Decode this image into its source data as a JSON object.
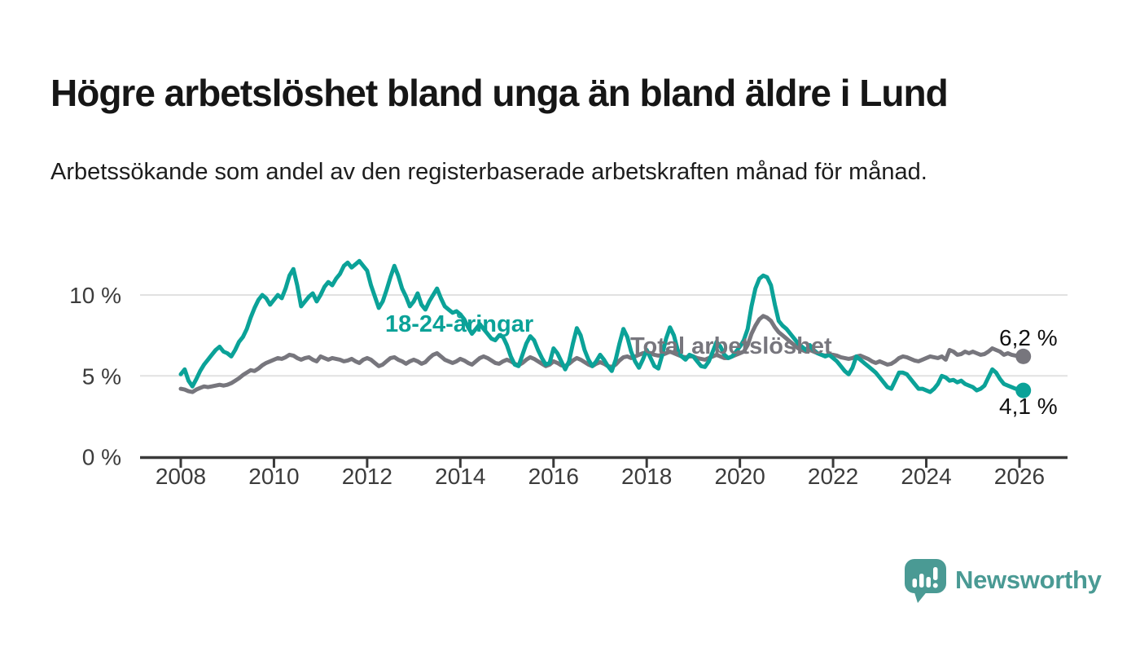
{
  "chart_data": {
    "type": "line",
    "title": "Högre arbetslöshet bland unga än bland äldre i Lund",
    "subtitle": "Arbetssökande som andel av den registerbaserade arbetskraften månad för månad.",
    "x_unit": "month",
    "x_start": "2008-01",
    "x_end": "2026-02",
    "x_ticks": [
      2008,
      2010,
      2012,
      2014,
      2016,
      2018,
      2020,
      2022,
      2024,
      2026
    ],
    "y_axis": {
      "unit": "%",
      "ylim": [
        0,
        12.6
      ],
      "ticks": [
        {
          "label": "0 %",
          "value": 0
        },
        {
          "label": "5 %",
          "value": 5
        },
        {
          "label": "10 %",
          "value": 10
        }
      ]
    },
    "grid": "horizontal-gridlines-at-5-and-10",
    "legend": "inline-labels-on-lines",
    "series": [
      {
        "name": "18-24-åringar",
        "color": "#0ba298",
        "end_label": "4,1 %",
        "last_value": 4.1,
        "values": [
          5.1,
          5.4,
          4.7,
          4.35,
          4.8,
          5.3,
          5.7,
          6.0,
          6.3,
          6.6,
          6.8,
          6.5,
          6.4,
          6.2,
          6.6,
          7.1,
          7.4,
          7.9,
          8.6,
          9.2,
          9.7,
          10.0,
          9.8,
          9.4,
          9.7,
          10.0,
          9.8,
          10.4,
          11.2,
          11.6,
          10.6,
          9.3,
          9.6,
          9.9,
          10.1,
          9.6,
          10.0,
          10.5,
          10.8,
          10.6,
          11.0,
          11.3,
          11.8,
          12.0,
          11.7,
          11.9,
          12.1,
          11.8,
          11.5,
          10.6,
          9.9,
          9.2,
          9.6,
          10.3,
          11.1,
          11.8,
          11.2,
          10.4,
          9.9,
          9.3,
          9.6,
          10.1,
          9.4,
          9.1,
          9.6,
          10.0,
          10.4,
          9.8,
          9.3,
          9.1,
          8.9,
          9.0,
          8.8,
          8.5,
          8.0,
          7.6,
          7.9,
          8.2,
          7.9,
          7.6,
          7.3,
          7.2,
          7.5,
          7.4,
          6.9,
          6.2,
          5.7,
          5.6,
          6.3,
          7.0,
          7.45,
          7.2,
          6.6,
          6.1,
          5.7,
          5.8,
          6.7,
          6.4,
          5.9,
          5.4,
          5.9,
          7.0,
          7.95,
          7.5,
          6.6,
          6.0,
          5.6,
          5.9,
          6.3,
          6.0,
          5.6,
          5.3,
          6.0,
          7.0,
          7.9,
          7.4,
          6.5,
          5.9,
          5.5,
          6.0,
          6.6,
          6.1,
          5.6,
          5.45,
          6.3,
          7.3,
          8.0,
          7.5,
          6.6,
          6.2,
          6.0,
          6.3,
          6.2,
          5.9,
          5.6,
          5.55,
          5.9,
          6.5,
          7.1,
          6.8,
          6.3,
          6.1,
          6.2,
          6.5,
          6.8,
          7.2,
          7.9,
          9.3,
          10.4,
          11.0,
          11.2,
          11.1,
          10.6,
          9.4,
          8.4,
          8.1,
          7.9,
          7.6,
          7.3,
          7.0,
          6.8,
          6.6,
          6.9,
          6.6,
          6.4,
          6.3,
          6.2,
          6.3,
          6.1,
          5.9,
          5.6,
          5.3,
          5.1,
          5.5,
          6.2,
          6.0,
          5.8,
          5.6,
          5.4,
          5.2,
          4.9,
          4.6,
          4.3,
          4.2,
          4.7,
          5.2,
          5.2,
          5.1,
          4.8,
          4.5,
          4.2,
          4.2,
          4.1,
          4.0,
          4.2,
          4.5,
          5.0,
          4.9,
          4.7,
          4.75,
          4.6,
          4.7,
          4.5,
          4.4,
          4.3,
          4.1,
          4.2,
          4.4,
          4.9,
          5.4,
          5.2,
          4.8,
          4.5,
          4.4,
          4.3,
          4.2,
          4.2,
          4.1
        ]
      },
      {
        "name": "Total arbetslöshet",
        "color": "#77767d",
        "end_label": "6,2 %",
        "last_value": 6.2,
        "values": [
          4.2,
          4.15,
          4.05,
          4.0,
          4.15,
          4.25,
          4.35,
          4.3,
          4.35,
          4.4,
          4.45,
          4.4,
          4.45,
          4.55,
          4.7,
          4.85,
          5.05,
          5.2,
          5.35,
          5.3,
          5.45,
          5.65,
          5.8,
          5.9,
          6.0,
          6.1,
          6.05,
          6.15,
          6.3,
          6.25,
          6.1,
          6.0,
          6.1,
          6.15,
          6.0,
          5.9,
          6.2,
          6.1,
          6.0,
          6.1,
          6.05,
          6.0,
          5.9,
          5.95,
          6.05,
          5.9,
          5.8,
          6.0,
          6.1,
          6.0,
          5.8,
          5.6,
          5.7,
          5.9,
          6.1,
          6.15,
          6.0,
          5.9,
          5.75,
          5.9,
          6.0,
          5.9,
          5.75,
          5.85,
          6.1,
          6.3,
          6.4,
          6.2,
          6.0,
          5.9,
          5.8,
          5.9,
          6.05,
          5.95,
          5.8,
          5.7,
          5.9,
          6.1,
          6.2,
          6.1,
          5.95,
          5.8,
          5.75,
          5.9,
          6.0,
          5.9,
          5.75,
          5.65,
          5.8,
          6.0,
          6.15,
          6.05,
          5.9,
          5.75,
          5.6,
          5.7,
          5.9,
          5.8,
          5.65,
          5.6,
          5.75,
          5.95,
          6.1,
          6.0,
          5.85,
          5.7,
          5.6,
          5.75,
          5.85,
          5.75,
          5.6,
          5.55,
          5.7,
          5.95,
          6.15,
          6.2,
          6.1,
          6.2,
          6.3,
          6.4,
          6.45,
          6.4,
          6.3,
          6.25,
          6.3,
          6.4,
          6.5,
          6.4,
          6.3,
          6.2,
          6.15,
          6.2,
          6.2,
          6.1,
          6.05,
          6.0,
          6.1,
          6.2,
          6.3,
          6.2,
          6.1,
          6.1,
          6.2,
          6.3,
          6.4,
          6.5,
          6.9,
          7.6,
          8.1,
          8.5,
          8.7,
          8.6,
          8.4,
          8.0,
          7.7,
          7.5,
          7.3,
          7.1,
          6.9,
          6.7,
          6.6,
          6.5,
          6.6,
          6.5,
          6.4,
          6.3,
          6.25,
          6.3,
          6.3,
          6.25,
          6.15,
          6.1,
          6.05,
          6.1,
          6.2,
          6.25,
          6.15,
          6.05,
          5.9,
          5.8,
          5.9,
          5.8,
          5.7,
          5.75,
          5.9,
          6.1,
          6.2,
          6.15,
          6.05,
          5.95,
          5.9,
          6.0,
          6.1,
          6.2,
          6.15,
          6.1,
          6.2,
          6.0,
          6.6,
          6.5,
          6.3,
          6.35,
          6.5,
          6.4,
          6.5,
          6.4,
          6.3,
          6.35,
          6.5,
          6.7,
          6.6,
          6.5,
          6.3,
          6.4,
          6.3,
          6.25,
          6.25,
          6.2
        ]
      }
    ]
  },
  "footer": {
    "brand": "Newsworthy",
    "logo_color": "#4a9a94"
  }
}
